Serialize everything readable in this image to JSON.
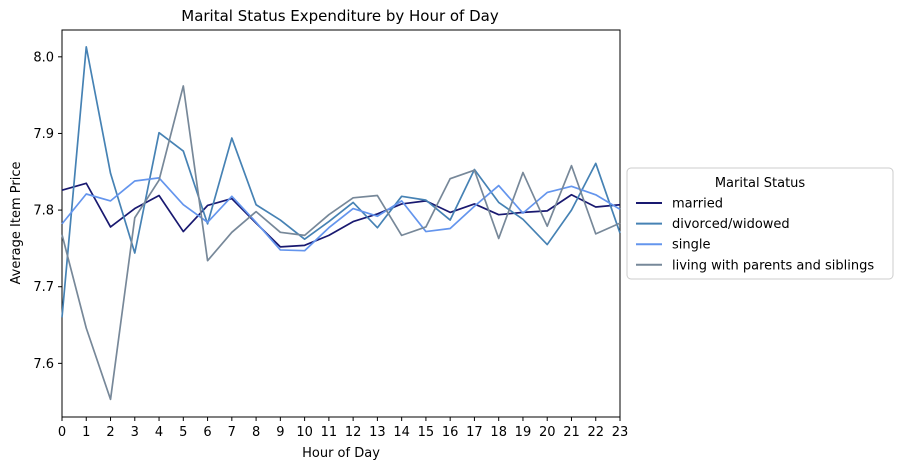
{
  "chart_data": {
    "type": "line",
    "title": "Marital Status Expenditure by Hour of Day",
    "xlabel": "Hour of Day",
    "ylabel": "Average Item Price",
    "x": [
      0,
      1,
      2,
      3,
      4,
      5,
      6,
      7,
      8,
      9,
      10,
      11,
      12,
      13,
      14,
      15,
      16,
      17,
      18,
      19,
      20,
      21,
      22,
      23
    ],
    "xticks": [
      "0",
      "1",
      "2",
      "3",
      "4",
      "5",
      "6",
      "7",
      "8",
      "9",
      "10",
      "11",
      "12",
      "13",
      "14",
      "15",
      "16",
      "17",
      "18",
      "19",
      "20",
      "21",
      "22",
      "23"
    ],
    "xlim": [
      0,
      23
    ],
    "ylim": [
      7.53,
      8.035
    ],
    "yticks": [
      7.6,
      7.7,
      7.8,
      7.9,
      8.0
    ],
    "ytick_labels": [
      "7.6",
      "7.7",
      "7.8",
      "7.9",
      "8.0"
    ],
    "grid": false,
    "legend": {
      "title": "Marital Status",
      "placement": "outside-right"
    },
    "series": [
      {
        "name": "married",
        "color": "#191970",
        "values": [
          7.826,
          7.835,
          7.778,
          7.802,
          7.819,
          7.772,
          7.806,
          7.815,
          7.783,
          7.752,
          7.754,
          7.767,
          7.785,
          7.795,
          7.808,
          7.812,
          7.797,
          7.808,
          7.794,
          7.797,
          7.799,
          7.82,
          7.804,
          7.807
        ]
      },
      {
        "name": "divorced/widowed",
        "color": "#4682b4",
        "values": [
          7.66,
          8.013,
          7.848,
          7.744,
          7.901,
          7.877,
          7.782,
          7.894,
          7.807,
          7.787,
          7.762,
          7.785,
          7.81,
          7.777,
          7.818,
          7.813,
          7.787,
          7.853,
          7.81,
          7.788,
          7.755,
          7.8,
          7.861,
          7.77
        ]
      },
      {
        "name": "single",
        "color": "#6495ed",
        "values": [
          7.782,
          7.821,
          7.812,
          7.838,
          7.842,
          7.807,
          7.784,
          7.818,
          7.784,
          7.748,
          7.747,
          7.777,
          7.802,
          7.792,
          7.812,
          7.772,
          7.776,
          7.805,
          7.832,
          7.796,
          7.823,
          7.831,
          7.82,
          7.801
        ]
      },
      {
        "name": "living with parents and siblings",
        "color": "#778899",
        "values": [
          7.768,
          7.646,
          7.553,
          7.79,
          7.839,
          7.962,
          7.734,
          7.771,
          7.798,
          7.771,
          7.767,
          7.794,
          7.816,
          7.819,
          7.767,
          7.778,
          7.841,
          7.852,
          7.763,
          7.849,
          7.779,
          7.858,
          7.769,
          7.783
        ]
      }
    ]
  }
}
